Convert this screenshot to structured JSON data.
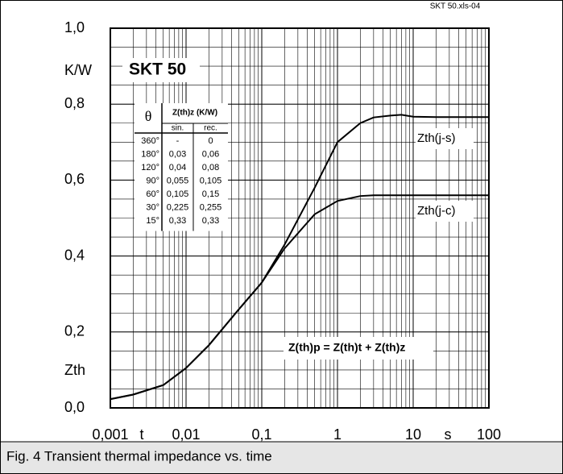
{
  "chart_data": {
    "type": "line",
    "title": "SKT 50",
    "file_label": "SKT 50.xls-04",
    "caption": "Fig. 4 Transient thermal impedance vs. time",
    "y_label": "Zth",
    "y_unit": "K/W",
    "x_label": "t",
    "x_unit": "s",
    "annotation": "Z(th)p = Z(th)t + Z(th)z",
    "log_x": true,
    "grid": true,
    "x": [
      0.001,
      0.002,
      0.005,
      0.01,
      0.02,
      0.05,
      0.1,
      0.2,
      0.5,
      1,
      2,
      3,
      5,
      7,
      10,
      20,
      50,
      100
    ],
    "series": [
      {
        "name": "Zth(j-s)",
        "color": "#000000",
        "values": [
          0.023,
          0.035,
          0.06,
          0.105,
          0.165,
          0.26,
          0.33,
          0.43,
          0.58,
          0.7,
          0.75,
          0.765,
          0.77,
          0.772,
          0.767,
          0.766,
          0.766,
          0.766
        ]
      },
      {
        "name": "Zth(j-c)",
        "color": "#000000",
        "values": [
          0.023,
          0.035,
          0.06,
          0.105,
          0.165,
          0.26,
          0.33,
          0.42,
          0.51,
          0.545,
          0.558,
          0.56,
          0.56,
          0.56,
          0.56,
          0.56,
          0.56,
          0.56
        ]
      }
    ],
    "xlim": [
      0.001,
      100
    ],
    "xticks": [
      {
        "value": 0.001,
        "label": "0,001"
      },
      {
        "value": 0.01,
        "label": "0,01"
      },
      {
        "value": 0.1,
        "label": "0,1"
      },
      1,
      10,
      100
    ],
    "ylim": [
      0,
      1
    ],
    "yticks": [
      {
        "value": 0,
        "label": "0,0"
      },
      {
        "value": 0.2,
        "label": "0,2"
      },
      {
        "value": 0.4,
        "label": "0,4"
      },
      {
        "value": 0.6,
        "label": "0,6"
      },
      {
        "value": 0.8,
        "label": "0,8"
      },
      {
        "value": 1,
        "label": "1,0"
      }
    ],
    "table": {
      "header": [
        "θ",
        "Z(th)z (K/W)"
      ],
      "subheader": [
        "sin.",
        "rec."
      ],
      "rows": [
        [
          "360°",
          "-",
          "0"
        ],
        [
          "180°",
          "0,03",
          "0,06"
        ],
        [
          "120°",
          "0,04",
          "0,08"
        ],
        [
          "90°",
          "0,055",
          "0,105"
        ],
        [
          "60°",
          "0,105",
          "0,15"
        ],
        [
          "30°",
          "0,225",
          "0,255"
        ],
        [
          "15°",
          "0,33",
          "0,33"
        ]
      ]
    }
  }
}
